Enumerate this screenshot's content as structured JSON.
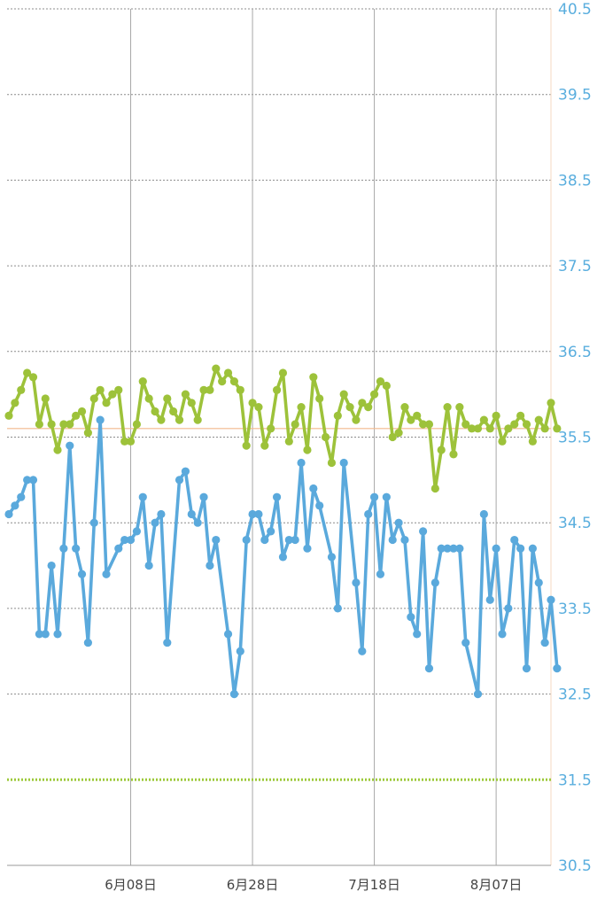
{
  "chart_data": {
    "type": "line",
    "x_tick_labels": [
      "6月08日",
      "6月28日",
      "7月18日",
      "8月07日"
    ],
    "y_ticks": [
      40.5,
      39.5,
      38.5,
      37.5,
      36.5,
      35.5,
      34.5,
      33.5,
      32.5,
      31.5,
      30.5
    ],
    "y_tick_labels": [
      "40.5",
      "39.5",
      "38.5",
      "37.5",
      "36.5",
      "35.5",
      "34.5",
      "33.5",
      "32.5",
      "31.5",
      "30.5"
    ],
    "ylim": [
      30.5,
      40.5
    ],
    "x_index_range": [
      0,
      89
    ],
    "x_tick_index": [
      20,
      40,
      60,
      80
    ],
    "grid": true,
    "reference_lines": [
      {
        "value": 35.6,
        "color": "#f2b98c",
        "style": "solid"
      },
      {
        "value": 31.5,
        "color": "#9dc93a",
        "style": "dotted"
      }
    ],
    "series": [
      {
        "color": "#9dc23a",
        "values": [
          35.75,
          35.9,
          36.05,
          36.25,
          36.2,
          35.65,
          35.95,
          35.65,
          35.35,
          35.65,
          35.65,
          35.75,
          35.8,
          35.55,
          35.95,
          36.05,
          35.9,
          36.0,
          36.05,
          35.45,
          35.45,
          35.65,
          36.15,
          35.95,
          35.8,
          35.7,
          35.95,
          35.8,
          35.7,
          36.0,
          35.9,
          35.7,
          36.05,
          36.05,
          36.3,
          36.15,
          36.25,
          36.15,
          36.05,
          35.4,
          35.9,
          35.85,
          35.4,
          35.6,
          36.05,
          36.25,
          35.45,
          35.65,
          35.85,
          35.35,
          36.2,
          35.95,
          35.5,
          35.2,
          35.75,
          36.0,
          35.85,
          35.7,
          35.9,
          35.85,
          36.0,
          36.15,
          36.1,
          35.5,
          35.55,
          35.85,
          35.7,
          35.75,
          35.65,
          35.65,
          34.9,
          35.35,
          35.85,
          35.3,
          35.85,
          35.65,
          35.6,
          35.6,
          35.7,
          35.6,
          35.75,
          35.45,
          35.6,
          35.65,
          35.75,
          35.65,
          35.45,
          35.7,
          35.6,
          35.9,
          35.6
        ]
      },
      {
        "color": "#5aa9dc",
        "values": [
          34.6,
          34.7,
          34.8,
          35.0,
          35.0,
          33.2,
          33.2,
          34.0,
          33.2,
          34.2,
          35.4,
          34.2,
          33.9,
          33.1,
          34.5,
          35.7,
          33.9,
          null,
          34.2,
          34.3,
          34.3,
          34.4,
          34.8,
          34.0,
          34.5,
          34.6,
          33.1,
          null,
          35.0,
          35.1,
          34.6,
          34.5,
          34.8,
          34.0,
          34.3,
          null,
          33.2,
          32.5,
          33.0,
          34.3,
          34.6,
          34.6,
          34.3,
          34.4,
          34.8,
          34.1,
          34.3,
          34.3,
          35.2,
          34.2,
          34.9,
          34.7,
          null,
          34.1,
          33.5,
          35.2,
          null,
          33.8,
          33.0,
          34.6,
          34.8,
          33.9,
          34.8,
          34.3,
          34.5,
          34.3,
          33.4,
          33.2,
          34.4,
          32.8,
          33.8,
          34.2,
          34.2,
          34.2,
          34.2,
          33.1,
          null,
          32.5,
          34.6,
          33.6,
          34.2,
          33.2,
          33.5,
          34.3,
          34.2,
          32.8,
          34.2,
          33.8,
          33.1,
          33.6,
          32.8
        ]
      }
    ]
  }
}
